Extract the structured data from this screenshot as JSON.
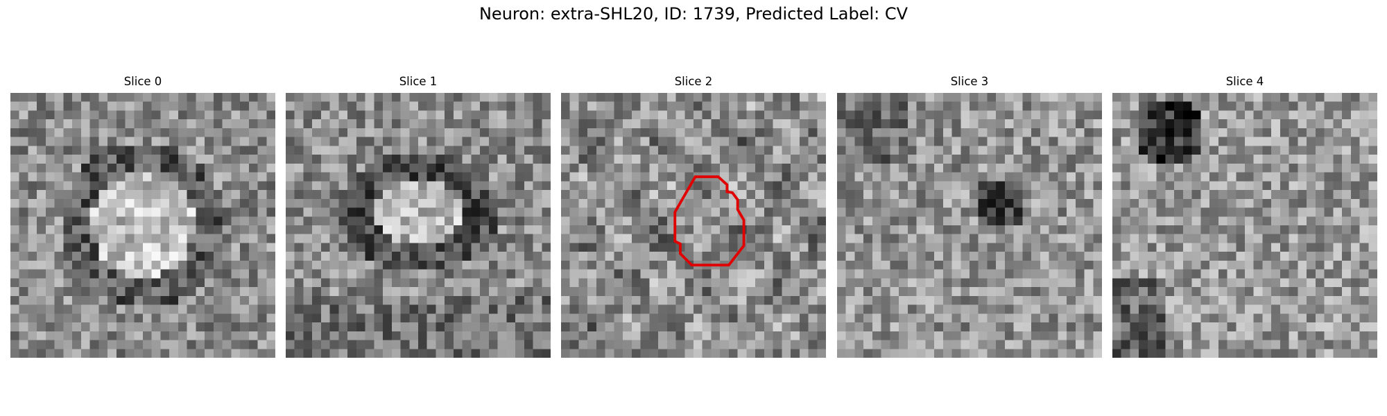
{
  "figure": {
    "title": "Neuron: extra-SHL20, ID: 1739, Predicted Label: CV"
  },
  "slices": [
    {
      "label": "Slice 0",
      "seed": 11,
      "pattern": "ring-bright",
      "has_outline": false
    },
    {
      "label": "Slice 1",
      "seed": 23,
      "pattern": "ring-dark",
      "has_outline": false
    },
    {
      "label": "Slice 2",
      "seed": 37,
      "pattern": "mottled",
      "has_outline": true
    },
    {
      "label": "Slice 3",
      "seed": 51,
      "pattern": "mottled-dark-center",
      "has_outline": false
    },
    {
      "label": "Slice 4",
      "seed": 67,
      "pattern": "dark-top-left",
      "has_outline": false
    }
  ],
  "outline": {
    "color": "#e00000",
    "grid_points": [
      [
        15.2,
        9.5
      ],
      [
        17.8,
        9.5
      ],
      [
        18.8,
        10.4
      ],
      [
        18.8,
        11.2
      ],
      [
        19.4,
        11.3
      ],
      [
        20,
        12.1
      ],
      [
        20,
        13.2
      ],
      [
        20.7,
        14.4
      ],
      [
        20.7,
        17.3
      ],
      [
        19,
        19.5
      ],
      [
        14.8,
        19.5
      ],
      [
        13.5,
        18.2
      ],
      [
        13.5,
        17.1
      ],
      [
        12.9,
        16.8
      ],
      [
        12.9,
        13.5
      ]
    ]
  },
  "image_grid_size": 30
}
